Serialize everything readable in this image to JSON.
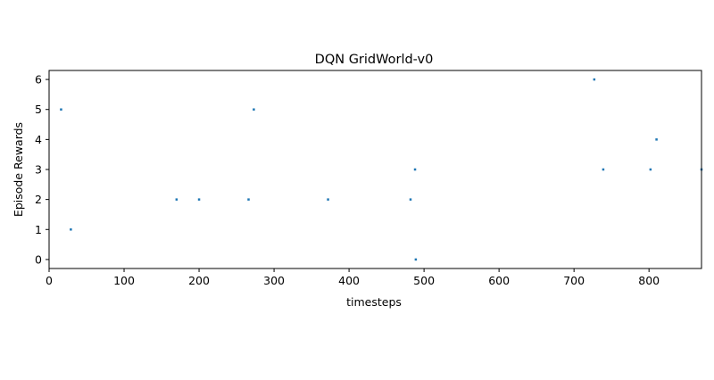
{
  "chart_data": {
    "type": "scatter",
    "title": "DQN GridWorld-v0",
    "xlabel": "timesteps",
    "ylabel": "Episode Rewards",
    "xlim": [
      0,
      870
    ],
    "ylim": [
      -0.3,
      6.3
    ],
    "xticks": [
      0,
      100,
      200,
      300,
      400,
      500,
      600,
      700,
      800
    ],
    "yticks": [
      0,
      1,
      2,
      3,
      4,
      5,
      6
    ],
    "grid": false,
    "series": [
      {
        "color": "#1f77b4",
        "x": [
          16,
          29,
          170,
          200,
          266,
          273,
          372,
          482,
          488,
          489,
          727,
          739,
          802,
          810,
          870
        ],
        "y": [
          5,
          1,
          2,
          2,
          2,
          5,
          2,
          2,
          3,
          0,
          6,
          3,
          3,
          4,
          3
        ]
      }
    ]
  }
}
